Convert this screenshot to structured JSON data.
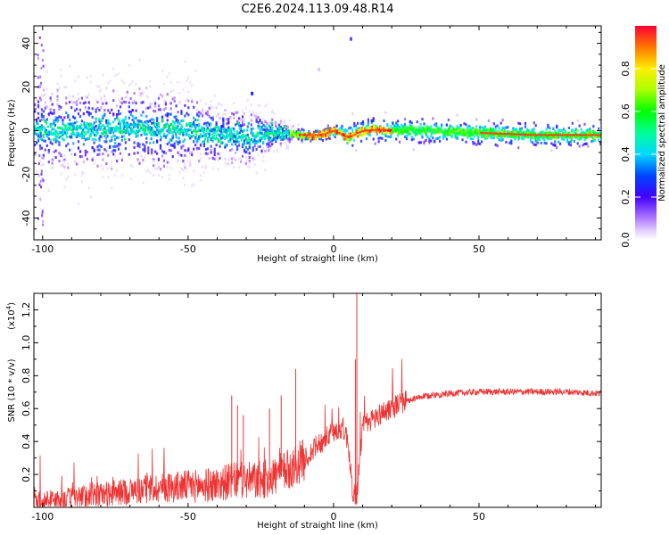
{
  "page": {
    "title": "C2E6.2024.113.09.48.R14"
  },
  "chart_data": [
    {
      "type": "heatmap",
      "title": "C2E6.2024.113.09.48.R14",
      "xlabel": "Height of straight line (km)",
      "ylabel": "Frequency (Hz)",
      "xlim": [
        -103,
        92
      ],
      "ylim": [
        -50,
        48
      ],
      "x_ticks": [
        -100,
        -50,
        0,
        50
      ],
      "y_ticks": [
        -40,
        -20,
        0,
        20,
        40
      ],
      "colorbar": {
        "label": "Normalized spectral amplitude",
        "range": [
          0,
          1
        ],
        "ticks": [
          0.0,
          0.2,
          0.4,
          0.6,
          0.8
        ]
      },
      "band_center_profile": {
        "x": [
          -103,
          -90,
          -80,
          -70,
          -60,
          -50,
          -45,
          -40,
          -35,
          -30,
          -25,
          -20,
          -15,
          -10,
          -5,
          0,
          3,
          5,
          8,
          10,
          15,
          20,
          30,
          40,
          50,
          60,
          70,
          80,
          92
        ],
        "center_hz": [
          0,
          0.5,
          0.5,
          1,
          0,
          0.5,
          -1,
          -2,
          -2,
          -3,
          -2,
          -1,
          -1.5,
          -2,
          -2,
          0,
          -2,
          -3,
          -1,
          0,
          0.5,
          0,
          0,
          -0.5,
          -1,
          -1.5,
          -2,
          -2,
          -2
        ],
        "spread_hz": [
          9,
          9,
          9,
          9,
          9,
          8,
          7,
          6,
          6,
          6,
          5,
          3,
          2,
          1.5,
          1.5,
          2,
          3,
          4,
          3,
          3,
          3,
          3,
          3,
          3,
          3,
          3,
          3,
          3,
          2.5
        ]
      },
      "outliers": [
        {
          "x": 6,
          "y": 42,
          "value": 0.15
        },
        {
          "x": -28,
          "y": 17,
          "value": 0.25
        },
        {
          "x": -5,
          "y": 28,
          "value": 0.05
        }
      ],
      "grid": false
    },
    {
      "type": "line",
      "xlabel": "Height of straight line (km)",
      "ylabel": "SNR (10 * v/v)",
      "y_scale_label": "(x10",
      "y_scale_exponent": "4",
      "y_scale_suffix": ")",
      "xlim": [
        -103,
        92
      ],
      "ylim": [
        0,
        1.3
      ],
      "x_ticks": [
        -100,
        -50,
        0,
        50
      ],
      "y_ticks": [
        0.2,
        0.4,
        0.6,
        0.8,
        1.0,
        1.2
      ],
      "color": "#ee3333",
      "trend": {
        "x": [
          -103,
          -90,
          -80,
          -70,
          -60,
          -50,
          -45,
          -40,
          -35,
          -30,
          -25,
          -20,
          -15,
          -10,
          -5,
          0,
          3,
          5,
          6,
          7,
          8,
          9,
          10,
          15,
          20,
          25,
          30,
          35,
          40,
          50,
          60,
          70,
          80,
          92
        ],
        "y": [
          0.03,
          0.05,
          0.07,
          0.09,
          0.11,
          0.12,
          0.12,
          0.13,
          0.15,
          0.15,
          0.15,
          0.18,
          0.22,
          0.28,
          0.38,
          0.45,
          0.48,
          0.4,
          0.18,
          0.05,
          0.07,
          0.3,
          0.48,
          0.55,
          0.6,
          0.64,
          0.67,
          0.68,
          0.69,
          0.7,
          0.7,
          0.7,
          0.7,
          0.69
        ]
      },
      "spikes": [
        {
          "x": -35,
          "y": 0.68
        },
        {
          "x": -33,
          "y": 0.62
        },
        {
          "x": -31,
          "y": 0.56
        },
        {
          "x": -22,
          "y": 0.6
        },
        {
          "x": -18,
          "y": 0.68
        },
        {
          "x": -13,
          "y": 0.84
        },
        {
          "x": 8,
          "y": 1.32
        },
        {
          "x": 7.5,
          "y": 0.9
        }
      ],
      "grid": false
    }
  ]
}
